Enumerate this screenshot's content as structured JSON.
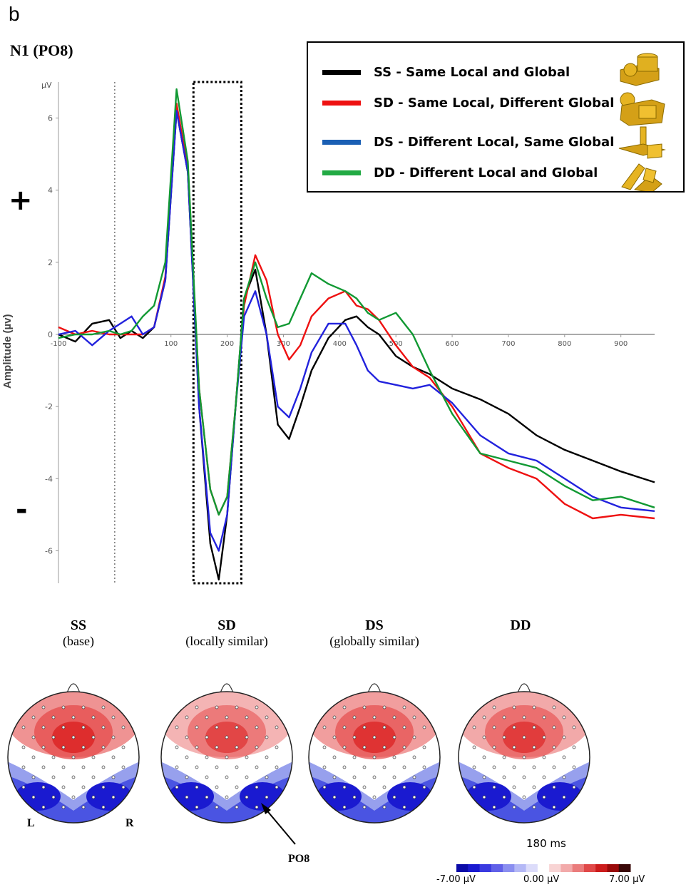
{
  "figure": {
    "panel_letter": "b",
    "panel_title": "N1 (PO8)",
    "plus_sign": "+",
    "minus_sign": "-"
  },
  "chart_data": {
    "type": "line",
    "xlabel": "",
    "ylabel": "Amplitude (µv)",
    "yunit": "µV",
    "xlim": [
      -100,
      960
    ],
    "ylim": [
      -6.9,
      7
    ],
    "x_ticks": [
      -100,
      100,
      200,
      300,
      400,
      500,
      600,
      700,
      800,
      900
    ],
    "y_ticks": [
      6,
      4,
      2,
      0,
      -2,
      -4,
      -6
    ],
    "vertical_markers": [
      0
    ],
    "highlight_window": [
      140,
      225
    ],
    "series": [
      {
        "name": "SS - Same Local and Global",
        "color": "#000000",
        "x": [
          -100,
          -70,
          -40,
          -10,
          10,
          30,
          50,
          70,
          90,
          110,
          130,
          150,
          170,
          185,
          200,
          215,
          230,
          250,
          270,
          290,
          310,
          330,
          350,
          380,
          410,
          430,
          450,
          470,
          500,
          530,
          560,
          600,
          650,
          700,
          750,
          800,
          850,
          900,
          960
        ],
        "y": [
          0,
          -0.2,
          0.3,
          0.4,
          -0.1,
          0.1,
          -0.1,
          0.2,
          1.5,
          6.2,
          4.5,
          -2,
          -5.8,
          -6.8,
          -5,
          -2,
          1,
          1.8,
          0,
          -2.5,
          -2.9,
          -2,
          -1,
          -0.1,
          0.4,
          0.5,
          0.2,
          0,
          -0.6,
          -0.9,
          -1.1,
          -1.5,
          -1.8,
          -2.2,
          -2.8,
          -3.2,
          -3.5,
          -3.8,
          -4.1
        ]
      },
      {
        "name": "SD - Same Local, Different Global",
        "color": "#ee1111",
        "x": [
          -100,
          -70,
          -40,
          -10,
          10,
          30,
          50,
          70,
          90,
          110,
          130,
          150,
          170,
          185,
          200,
          215,
          230,
          250,
          270,
          290,
          310,
          330,
          350,
          380,
          410,
          430,
          450,
          470,
          500,
          530,
          560,
          600,
          650,
          700,
          750,
          800,
          850,
          900,
          960
        ],
        "y": [
          0.2,
          0,
          0.1,
          0,
          0,
          0,
          0,
          0.2,
          1.6,
          6.4,
          4.6,
          -1.5,
          -4.3,
          -5,
          -4.5,
          -2,
          0.8,
          2.2,
          1.5,
          0,
          -0.7,
          -0.3,
          0.5,
          1,
          1.2,
          0.8,
          0.7,
          0.4,
          -0.3,
          -0.9,
          -1.2,
          -2,
          -3.3,
          -3.7,
          -4,
          -4.7,
          -5.1,
          -5,
          -5.1
        ]
      },
      {
        "name": "DS - Different Local, Same Global",
        "color": "#2222dd",
        "x": [
          -100,
          -70,
          -40,
          -10,
          10,
          30,
          50,
          70,
          90,
          110,
          130,
          150,
          170,
          185,
          200,
          215,
          230,
          250,
          270,
          290,
          310,
          330,
          350,
          380,
          410,
          430,
          450,
          470,
          500,
          530,
          560,
          600,
          650,
          700,
          750,
          800,
          850,
          900,
          960
        ],
        "y": [
          0,
          0.1,
          -0.3,
          0.1,
          0.3,
          0.5,
          0,
          0.2,
          1.5,
          6.2,
          4.5,
          -2,
          -5.5,
          -6,
          -5,
          -2,
          0.5,
          1.2,
          0,
          -2,
          -2.3,
          -1.5,
          -0.5,
          0.3,
          0.3,
          -0.3,
          -1,
          -1.3,
          -1.4,
          -1.5,
          -1.4,
          -1.9,
          -2.8,
          -3.3,
          -3.5,
          -4,
          -4.5,
          -4.8,
          -4.9
        ]
      },
      {
        "name": "DD - Different Local and Global",
        "color": "#119933",
        "x": [
          -100,
          -70,
          -40,
          -10,
          10,
          30,
          50,
          70,
          90,
          110,
          130,
          150,
          170,
          185,
          200,
          215,
          230,
          250,
          270,
          290,
          310,
          330,
          350,
          380,
          410,
          430,
          450,
          470,
          500,
          530,
          560,
          600,
          650,
          700,
          750,
          800,
          850,
          900,
          960
        ],
        "y": [
          -0.1,
          0,
          0,
          0.1,
          0,
          0.1,
          0.5,
          0.8,
          2,
          6.8,
          4.8,
          -1.5,
          -4.3,
          -5,
          -4.5,
          -2,
          1,
          2,
          1,
          0.2,
          0.3,
          1,
          1.7,
          1.4,
          1.2,
          1,
          0.6,
          0.4,
          0.6,
          0,
          -1,
          -2.2,
          -3.3,
          -3.5,
          -3.7,
          -4.2,
          -4.6,
          -4.5,
          -4.8
        ]
      }
    ]
  },
  "legend": {
    "entries": [
      {
        "label": "SS - Same Local and Global",
        "color": "#000000",
        "icon": "ss-shape-icon"
      },
      {
        "label": "SD - Same Local, Different Global",
        "color": "#ee1111",
        "icon": "sd-shape-icon"
      },
      {
        "label": "DS - Different Local, Same Global",
        "color": "#1a5fb4",
        "icon": "ds-shape-icon"
      },
      {
        "label": "DD - Different Local and Global",
        "color": "#22aa44",
        "icon": "dd-shape-icon"
      }
    ]
  },
  "topomaps": {
    "conditions": [
      {
        "code": "SS",
        "sub": "(base)"
      },
      {
        "code": "SD",
        "sub": "(locally similar)"
      },
      {
        "code": "DS",
        "sub": "(globally similar)"
      },
      {
        "code": "DD",
        "sub": ""
      }
    ],
    "left_label": "L",
    "right_label": "R",
    "electrode_label": "PO8",
    "time_label": "180 ms",
    "colorbar": {
      "min_label": "-7.00 µV",
      "mid_label": "0.00 µV",
      "max_label": "7.00 µV"
    }
  }
}
